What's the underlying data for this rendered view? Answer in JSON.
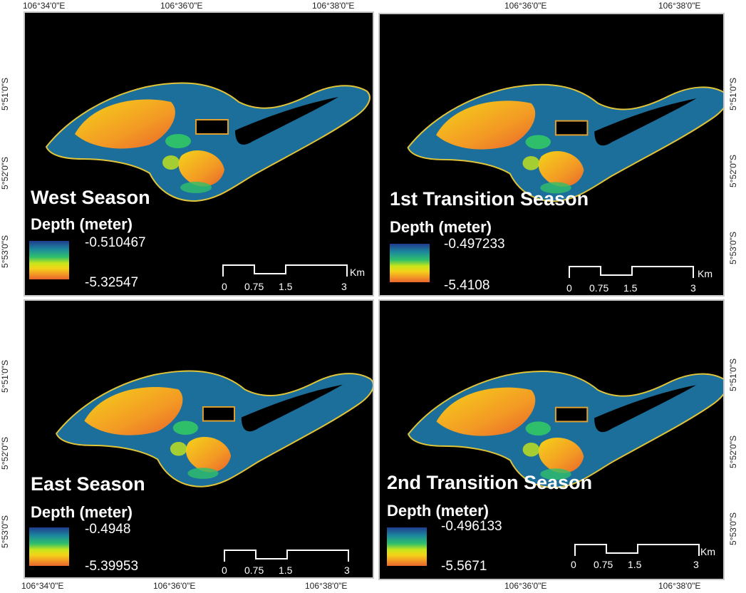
{
  "coords": {
    "top_lon": [
      "106°34'0\"E",
      "106°36'0\"E",
      "106°38'0\"E",
      "106°36'0\"E",
      "106°38'0\"E"
    ],
    "bottom_lon": [
      "106°34'0\"E",
      "106°36'0\"E",
      "106°38'0\"E",
      "106°36'0\"E",
      "106°38'0\"E"
    ],
    "left_lat": [
      "5°51'0\"S",
      "5°52'0\"S",
      "5°53'0\"S",
      "5°51'0\"S",
      "5°52'0\"S",
      "5°53'0\"S"
    ],
    "right_lat": [
      "5°51'0\"S",
      "5°52'0\"S",
      "5°53'0\"S",
      "5°51'0\"S",
      "5°52'0\"S",
      "5°53'0\"S"
    ]
  },
  "panels": [
    {
      "season": "West Season",
      "depth_label": "Depth (meter)",
      "max": "-0.510467",
      "min": "-5.32547"
    },
    {
      "season": "1st Transition Season",
      "depth_label": "Depth (meter)",
      "max": "-0.497233",
      "min": "-5.4108"
    },
    {
      "season": "East Season",
      "depth_label": "Depth (meter)",
      "max": "-0.4948",
      "min": "-5.39953"
    },
    {
      "season": "2nd Transition Season",
      "depth_label": "Depth (meter)",
      "max": "-0.496133",
      "min": "-5.5671"
    }
  ],
  "scalebar": {
    "ticks": [
      "0",
      "0.75",
      "1.5",
      "3"
    ],
    "unit": "Km"
  },
  "colors": {
    "shallow": "#1f3c8f",
    "deep": "#e8642b",
    "background": "#000000"
  }
}
